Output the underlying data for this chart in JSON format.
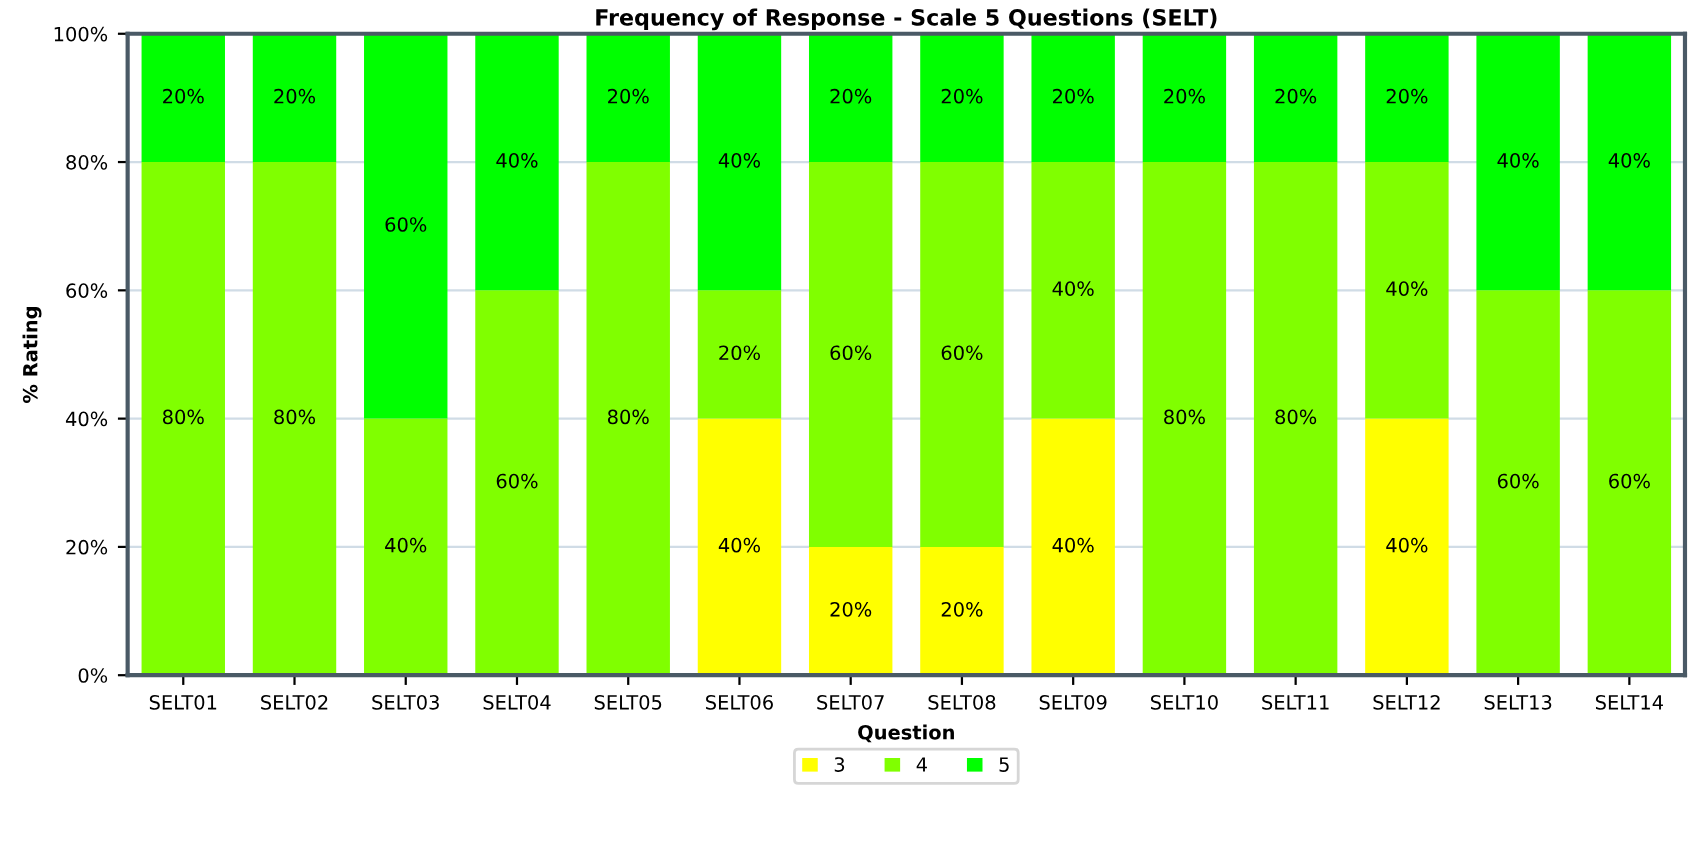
{
  "chart_data": {
    "type": "bar",
    "stacked": true,
    "title": "Frequency of Response - Scale 5 Questions (SELT)",
    "xlabel": "Question",
    "ylabel": "% Rating",
    "categories": [
      "SELT01",
      "SELT02",
      "SELT03",
      "SELT04",
      "SELT05",
      "SELT06",
      "SELT07",
      "SELT08",
      "SELT09",
      "SELT10",
      "SELT11",
      "SELT12",
      "SELT13",
      "SELT14"
    ],
    "series": [
      {
        "name": "3",
        "color": "#ffff00",
        "values": [
          0,
          0,
          0,
          0,
          0,
          40,
          20,
          20,
          40,
          0,
          0,
          40,
          0,
          0
        ],
        "value_labels": [
          null,
          null,
          null,
          null,
          null,
          "40%",
          "20%",
          "20%",
          "40%",
          null,
          null,
          "40%",
          null,
          null
        ]
      },
      {
        "name": "4",
        "color": "#80ff00",
        "values": [
          80,
          80,
          40,
          60,
          80,
          20,
          60,
          60,
          40,
          80,
          80,
          40,
          60,
          60
        ],
        "value_labels": [
          "80%",
          "80%",
          "40%",
          "60%",
          "80%",
          "20%",
          "60%",
          "60%",
          "40%",
          "80%",
          "80%",
          "40%",
          "60%",
          "60%"
        ]
      },
      {
        "name": "5",
        "color": "#00ff00",
        "values": [
          20,
          20,
          60,
          40,
          20,
          40,
          20,
          20,
          20,
          20,
          20,
          20,
          40,
          40
        ],
        "value_labels": [
          "20%",
          "20%",
          "60%",
          "40%",
          "20%",
          "40%",
          "20%",
          "20%",
          "20%",
          "20%",
          "20%",
          "20%",
          "40%",
          "40%"
        ]
      }
    ],
    "ylim": [
      0,
      100
    ],
    "yticks": [
      {
        "value": 0,
        "label": "0%"
      },
      {
        "value": 20,
        "label": "20%"
      },
      {
        "value": 40,
        "label": "40%"
      },
      {
        "value": 60,
        "label": "60%"
      },
      {
        "value": 80,
        "label": "80%"
      },
      {
        "value": 100,
        "label": "100%"
      }
    ],
    "grid": "y",
    "legend": "bottom"
  }
}
